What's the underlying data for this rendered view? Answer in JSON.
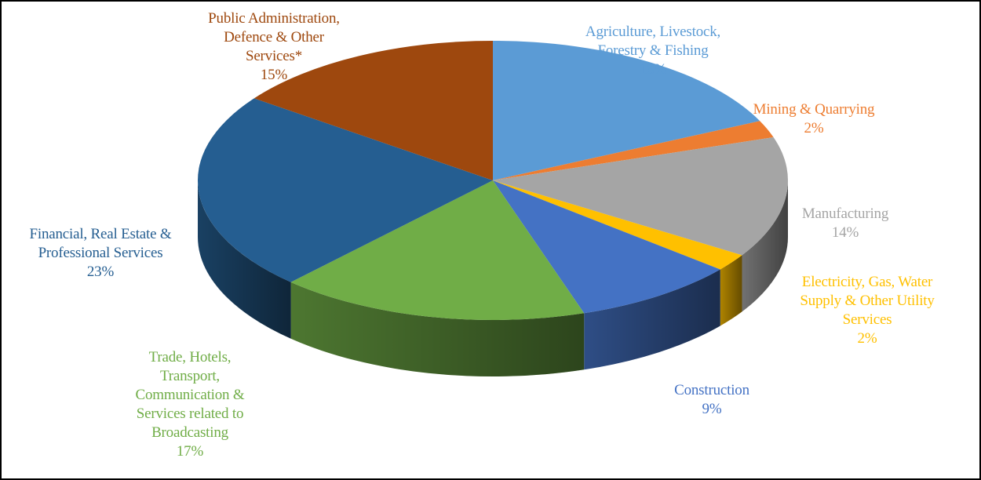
{
  "colors": {
    "agriculture": "#5B9BD5",
    "mining": "#ED7D31",
    "manufacturing": "#A5A5A5",
    "electricity": "#FFC000",
    "construction": "#4472C4",
    "trade": "#70AD47",
    "financial": "#255E91",
    "public_admin": "#9E480E"
  },
  "chart_data": {
    "type": "pie",
    "style": "3d-exploded-depth",
    "slices": [
      {
        "key": "agriculture",
        "label": "Agriculture, Livestock, Forestry & Fishing",
        "percent_label": "18%",
        "value": 18
      },
      {
        "key": "mining",
        "label": "Mining & Quarrying",
        "percent_label": "2%",
        "value": 2
      },
      {
        "key": "manufacturing",
        "label": "Manufacturing",
        "percent_label": "14%",
        "value": 14
      },
      {
        "key": "electricity",
        "label": "Electricity, Gas, Water Supply & Other Utility Services",
        "percent_label": "2%",
        "value": 2
      },
      {
        "key": "construction",
        "label": "Construction",
        "percent_label": "9%",
        "value": 9
      },
      {
        "key": "trade",
        "label": "Trade, Hotels, Transport, Communication & Services related to Broadcasting",
        "percent_label": "17%",
        "value": 17
      },
      {
        "key": "financial",
        "label": "Financial, Real Estate & Professional Services",
        "percent_label": "23%",
        "value": 23
      },
      {
        "key": "public_admin",
        "label": "Public Administration, Defence & Other Services*",
        "percent_label": "15%",
        "value": 15
      }
    ],
    "labels": {
      "agriculture": {
        "lines": [
          "Agriculture, Livestock,",
          "Forestry & Fishing"
        ],
        "pct": "18%"
      },
      "mining": {
        "lines": [
          "Mining & Quarrying"
        ],
        "pct": "2%"
      },
      "manufacturing": {
        "lines": [
          "Manufacturing"
        ],
        "pct": "14%"
      },
      "electricity": {
        "lines": [
          "Electricity, Gas, Water",
          "Supply & Other Utility",
          "Services"
        ],
        "pct": "2%"
      },
      "construction": {
        "lines": [
          "Construction"
        ],
        "pct": "9%"
      },
      "trade": {
        "lines": [
          "Trade, Hotels,",
          "Transport,",
          "Communication &",
          "Services related to",
          "Broadcasting"
        ],
        "pct": "17%"
      },
      "financial": {
        "lines": [
          "Financial, Real Estate &",
          "Professional Services"
        ],
        "pct": "23%"
      },
      "public_admin": {
        "lines": [
          "Public Administration,",
          "Defence & Other",
          "Services*"
        ],
        "pct": "15%"
      }
    },
    "legend": "none",
    "title": ""
  }
}
